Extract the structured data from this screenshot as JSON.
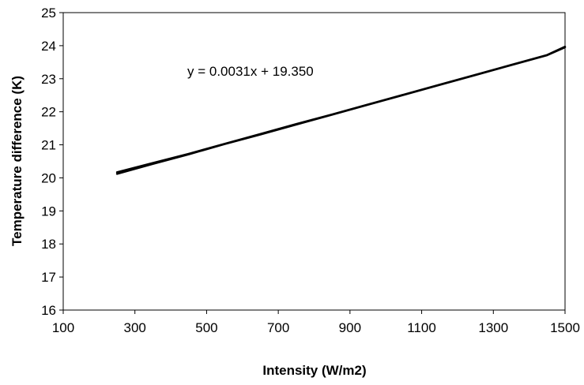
{
  "chart_data": {
    "type": "line",
    "title": "",
    "xlabel": "Intensity (W/m2)",
    "ylabel": "Temperature difference (K)",
    "xlim": [
      100,
      1500
    ],
    "ylim": [
      16,
      25
    ],
    "x_ticks": [
      "100",
      "300",
      "500",
      "700",
      "900",
      "1100",
      "1300",
      "1500"
    ],
    "y_ticks": [
      "16",
      "17",
      "18",
      "19",
      "20",
      "21",
      "22",
      "23",
      "24",
      "25"
    ],
    "grid": false,
    "legend": "none",
    "annotation": "y = 0.0031x + 19.350",
    "series": [
      {
        "color": "#000000",
        "x": [
          250,
          350,
          450,
          550,
          650,
          750,
          850,
          950,
          1050,
          1150,
          1250,
          1350,
          1450,
          1500
        ],
        "y": [
          20.17,
          20.45,
          20.73,
          21.03,
          21.33,
          21.63,
          21.92,
          22.22,
          22.52,
          22.82,
          23.12,
          23.42,
          23.72,
          23.97
        ]
      },
      {
        "color": "#000000",
        "x": [
          250,
          350,
          450,
          550,
          650,
          750,
          850,
          950,
          1050,
          1150,
          1250,
          1350,
          1450,
          1500
        ],
        "y": [
          20.12,
          20.42,
          20.71,
          21.02,
          21.31,
          21.61,
          21.91,
          22.21,
          22.51,
          22.81,
          23.11,
          23.41,
          23.71,
          23.95
        ]
      }
    ]
  }
}
